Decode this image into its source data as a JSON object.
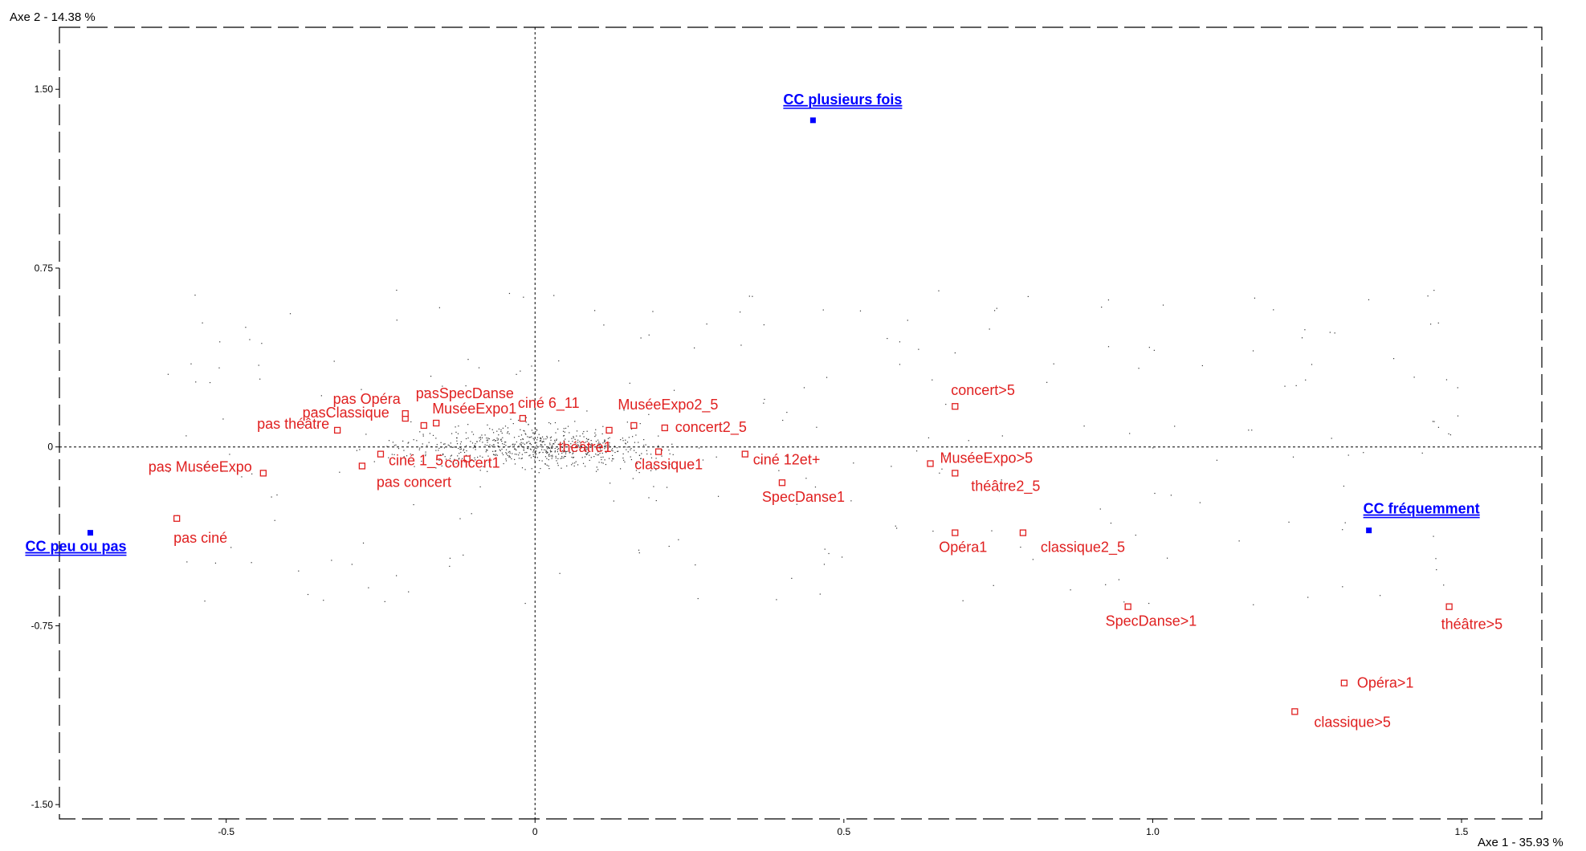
{
  "chart_data": {
    "type": "scatter",
    "title": "",
    "xlabel": "Axe 1  -  35.93 %",
    "ylabel": "Axe 2  -  14.38 %",
    "xlim": [
      -0.77,
      1.63
    ],
    "ylim": [
      -1.56,
      1.76
    ],
    "x_ticks": [
      -0.5,
      0,
      0.5,
      1.0,
      1.5
    ],
    "x_tick_labels": [
      "-0.5",
      "0",
      "0.5",
      "1.0",
      "1.5"
    ],
    "y_ticks": [
      1.5,
      0.75,
      0,
      -0.75,
      -1.5
    ],
    "y_tick_labels": [
      "1.50",
      "0.75",
      "0",
      "-0.75",
      "-1.50"
    ],
    "grid": false,
    "colors": {
      "active": "#e02020",
      "supplementary": "#0000ff",
      "individuals": "#333333"
    },
    "series": [
      {
        "kind": "active-categories",
        "points": [
          {
            "label": "pas ciné",
            "x": -0.58,
            "y": -0.3
          },
          {
            "label": "pas MuséeExpo",
            "x": -0.44,
            "y": -0.11
          },
          {
            "label": "pas concert",
            "x": -0.28,
            "y": -0.08
          },
          {
            "label": "pas théâtre",
            "x": -0.32,
            "y": 0.07
          },
          {
            "label": "pasClassique",
            "x": -0.21,
            "y": 0.12
          },
          {
            "label": "pas Opéra",
            "x": -0.21,
            "y": 0.14
          },
          {
            "label": "pasSpecDanse",
            "x": -0.18,
            "y": 0.09
          },
          {
            "label": "MuséeExpo1",
            "x": -0.16,
            "y": 0.1
          },
          {
            "label": "ciné 1_5",
            "x": -0.25,
            "y": -0.03
          },
          {
            "label": "concert1",
            "x": -0.11,
            "y": -0.05
          },
          {
            "label": "ciné 6_11",
            "x": -0.02,
            "y": 0.12
          },
          {
            "label": "théâtre1",
            "x": 0.12,
            "y": 0.07
          },
          {
            "label": "MuséeExpo2_5",
            "x": 0.16,
            "y": 0.09
          },
          {
            "label": "concert2_5",
            "x": 0.21,
            "y": 0.08
          },
          {
            "label": "classique1",
            "x": 0.2,
            "y": -0.02
          },
          {
            "label": "ciné 12et+",
            "x": 0.34,
            "y": -0.03
          },
          {
            "label": "SpecDanse1",
            "x": 0.4,
            "y": -0.15
          },
          {
            "label": "concert>5",
            "x": 0.68,
            "y": 0.17
          },
          {
            "label": "MuséeExpo>5",
            "x": 0.64,
            "y": -0.07
          },
          {
            "label": "théâtre2_5",
            "x": 0.68,
            "y": -0.11
          },
          {
            "label": "Opéra1",
            "x": 0.68,
            "y": -0.36
          },
          {
            "label": "classique2_5",
            "x": 0.79,
            "y": -0.36
          },
          {
            "label": "SpecDanse>1",
            "x": 0.96,
            "y": -0.67
          },
          {
            "label": "théâtre>5",
            "x": 1.48,
            "y": -0.67
          },
          {
            "label": "Opéra>1",
            "x": 1.31,
            "y": -0.99
          },
          {
            "label": "classique>5",
            "x": 1.23,
            "y": -1.11
          }
        ]
      },
      {
        "kind": "supplementary-categories",
        "points": [
          {
            "label": "CC plusieurs fois",
            "x": 0.45,
            "y": 1.37
          },
          {
            "label": "CC peu ou pas",
            "x": -0.72,
            "y": -0.36
          },
          {
            "label": "CC fréquemment",
            "x": 1.35,
            "y": -0.35
          }
        ]
      }
    ]
  }
}
